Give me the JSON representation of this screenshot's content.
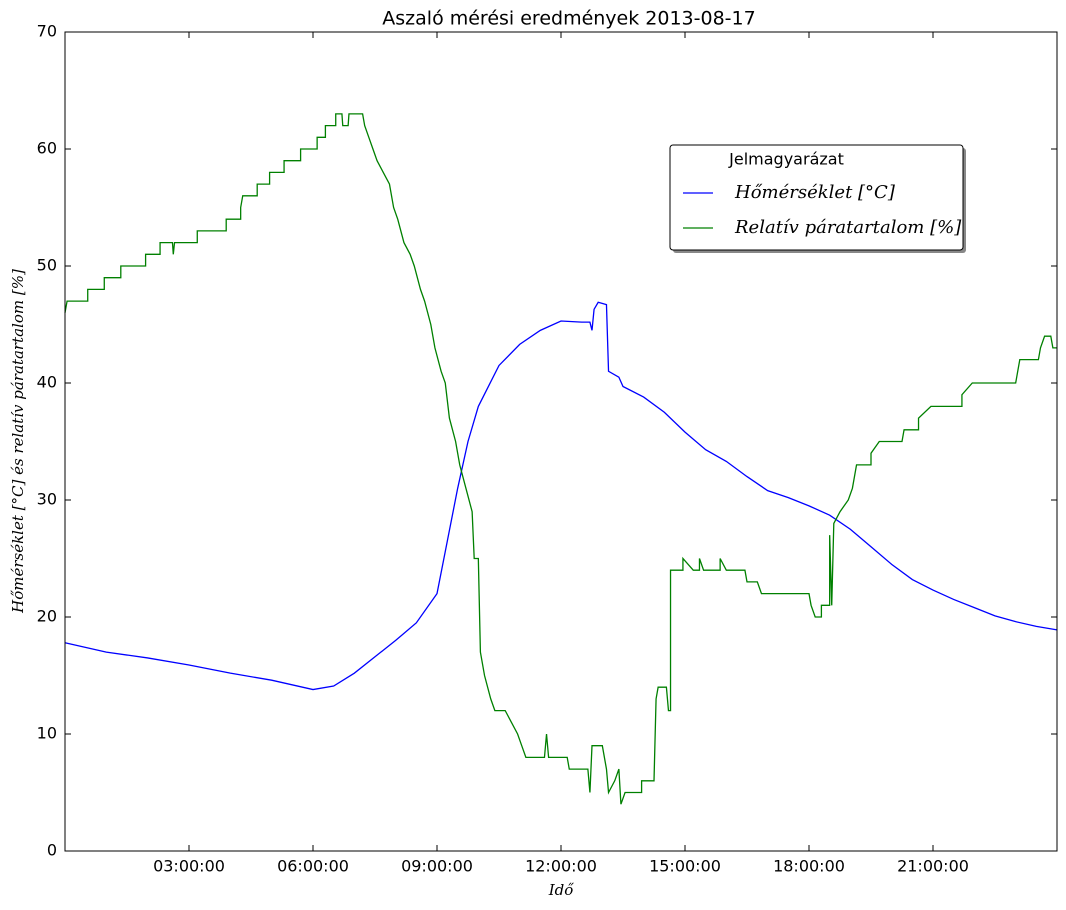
{
  "chart_data": {
    "type": "line",
    "title": "Aszaló mérési eredmények 2013-08-17",
    "xlabel": "Idő",
    "ylabel": "Hőmérséklet [°C] és relatív páratartalom [%]",
    "legend_title": "Jelmagyarázat",
    "legend": "upper right",
    "xlim": [
      0,
      24
    ],
    "ylim": [
      0,
      70
    ],
    "xticks": [
      {
        "value": 3,
        "label": "03:00:00"
      },
      {
        "value": 6,
        "label": "06:00:00"
      },
      {
        "value": 9,
        "label": "09:00:00"
      },
      {
        "value": 12,
        "label": "12:00:00"
      },
      {
        "value": 15,
        "label": "15:00:00"
      },
      {
        "value": 18,
        "label": "18:00:00"
      },
      {
        "value": 21,
        "label": "21:00:00"
      }
    ],
    "yticks": [
      0,
      10,
      20,
      30,
      40,
      50,
      60,
      70
    ],
    "grid": false,
    "series": [
      {
        "name": "Hőmérséklet [°C]",
        "color": "#0000ff",
        "x": [
          0,
          1,
          2,
          3,
          4,
          5,
          6,
          6.5,
          7,
          7.5,
          8,
          8.5,
          9,
          9.25,
          9.5,
          9.75,
          10,
          10.5,
          11,
          11.5,
          12,
          12.5,
          12.7,
          12.75,
          12.8,
          12.9,
          13.1,
          13.15,
          13.4,
          13.5,
          14,
          14.5,
          15,
          15.5,
          16,
          16.5,
          17,
          17.5,
          18,
          18.5,
          19,
          19.5,
          20,
          20.5,
          21,
          21.5,
          22,
          22.5,
          23,
          23.5,
          24
        ],
        "values": [
          17.8,
          17.0,
          16.5,
          15.9,
          15.2,
          14.6,
          13.8,
          14.1,
          15.2,
          16.6,
          18.0,
          19.5,
          22,
          26.5,
          31,
          35,
          38,
          41.5,
          43.3,
          44.5,
          45.3,
          45.2,
          45.2,
          44.5,
          46.3,
          46.9,
          46.7,
          41,
          40.5,
          39.7,
          38.8,
          37.5,
          35.8,
          34.3,
          33.3,
          32,
          30.8,
          30.2,
          29.5,
          28.7,
          27.5,
          26,
          24.5,
          23.2,
          22.3,
          21.5,
          20.8,
          20.1,
          19.6,
          19.2,
          18.9
        ]
      },
      {
        "name": "Relatív páratartalom [%]",
        "color": "#008000",
        "x": [
          0,
          0.05,
          0.55,
          0.55,
          0.95,
          0.95,
          1.35,
          1.35,
          1.95,
          1.95,
          2.3,
          2.3,
          2.6,
          2.62,
          2.65,
          3.2,
          3.2,
          3.9,
          3.9,
          4.25,
          4.25,
          4.3,
          4.65,
          4.65,
          4.95,
          4.95,
          5.3,
          5.3,
          5.7,
          5.7,
          6.1,
          6.1,
          6.3,
          6.3,
          6.55,
          6.55,
          6.7,
          6.72,
          6.85,
          6.87,
          7.2,
          7.25,
          7.35,
          7.45,
          7.55,
          7.7,
          7.85,
          7.95,
          8.05,
          8.2,
          8.35,
          8.45,
          8.6,
          8.7,
          8.85,
          8.95,
          9.1,
          9.2,
          9.3,
          9.45,
          9.55,
          9.7,
          9.85,
          9.9,
          10.0,
          10.05,
          10.15,
          10.3,
          10.4,
          10.65,
          10.8,
          10.95,
          11.05,
          11.15,
          11.6,
          11.65,
          11.7,
          12.15,
          12.2,
          12.65,
          12.7,
          12.75,
          13.0,
          13.1,
          13.15,
          13.3,
          13.4,
          13.45,
          13.55,
          13.95,
          13.95,
          14.25,
          14.3,
          14.35,
          14.55,
          14.6,
          14.65,
          14.65,
          14.95,
          14.95,
          15.2,
          15.35,
          15.35,
          15.45,
          15.85,
          15.85,
          16.0,
          16.45,
          16.5,
          16.75,
          16.85,
          18.0,
          18.05,
          18.15,
          18.3,
          18.3,
          18.5,
          18.5,
          18.55,
          18.6,
          18.75,
          18.95,
          19.05,
          19.15,
          19.5,
          19.5,
          19.7,
          20.25,
          20.3,
          20.65,
          20.65,
          20.95,
          21.7,
          21.7,
          21.95,
          23.0,
          23.05,
          23.1,
          23.55,
          23.6,
          23.7,
          23.85,
          23.9,
          24
        ],
        "values": [
          46,
          47,
          47,
          48,
          48,
          49,
          49,
          50,
          50,
          51,
          51,
          52,
          52,
          51,
          52,
          52,
          53,
          53,
          54,
          54,
          55,
          56,
          56,
          57,
          57,
          58,
          58,
          59,
          59,
          60,
          60,
          61,
          61,
          62,
          62,
          63,
          63,
          62,
          62,
          63,
          63,
          62,
          61,
          60,
          59,
          58,
          57,
          55,
          54,
          52,
          51,
          50,
          48,
          47,
          45,
          43,
          41,
          40,
          37,
          35,
          33,
          31,
          29,
          25,
          25,
          17,
          15,
          13,
          12,
          12,
          11,
          10,
          9,
          8,
          8,
          10,
          8,
          8,
          7,
          7,
          5,
          9,
          9,
          7,
          5,
          6,
          7,
          4,
          5,
          5,
          6,
          6,
          13,
          14,
          14,
          12,
          12,
          24,
          24,
          25,
          24,
          24,
          25,
          24,
          24,
          25,
          24,
          24,
          23,
          23,
          22,
          22,
          21,
          20,
          20,
          21,
          21,
          27,
          21,
          28,
          29,
          30,
          31,
          33,
          33,
          34,
          35,
          35,
          36,
          36,
          37,
          38,
          38,
          39,
          40,
          40,
          41,
          42,
          42,
          43,
          44,
          44,
          43,
          43
        ]
      }
    ]
  }
}
